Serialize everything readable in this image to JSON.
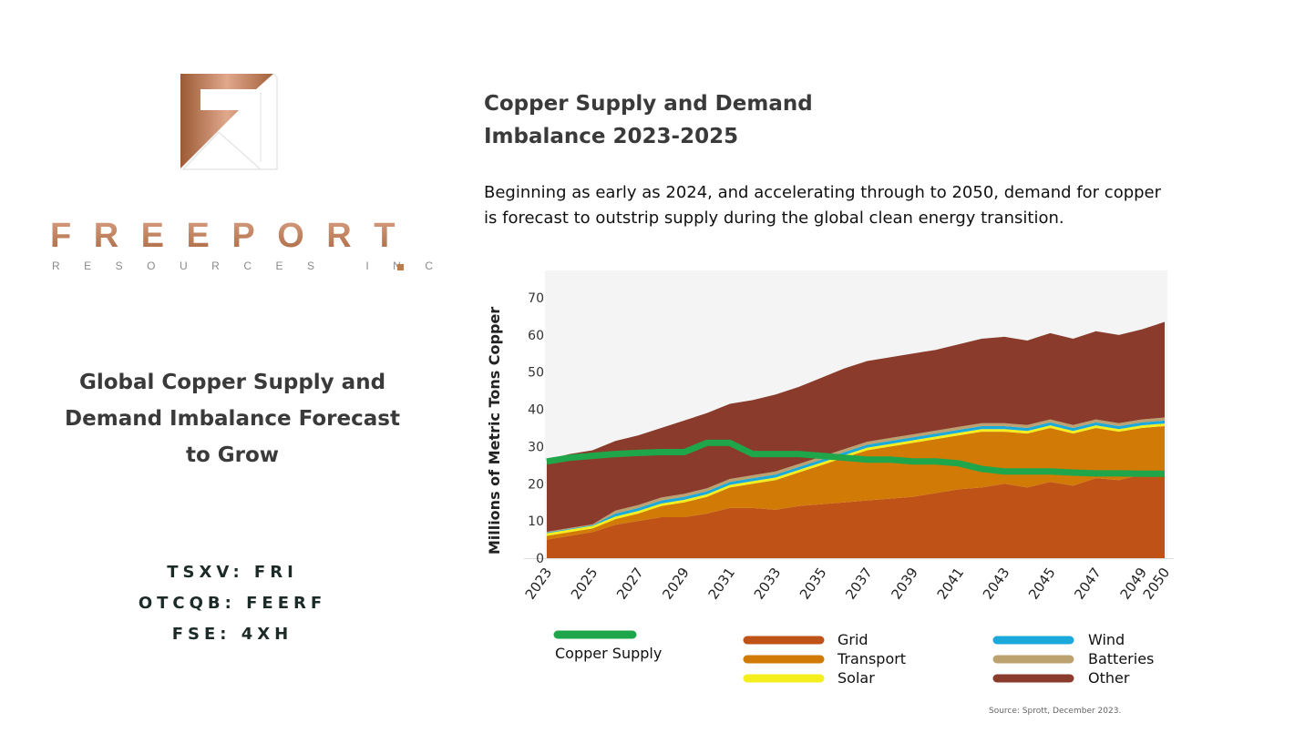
{
  "brand": {
    "name": "FREEPORT",
    "subtitle": "RESOURCES INC",
    "colors": {
      "copper": "#b8784f"
    }
  },
  "left_heading": "Global Copper Supply and Demand Imbalance Forecast to Grow",
  "tickers": [
    "TSXV: FRI",
    "OTCQB: FEERF",
    "FSE: 4XH"
  ],
  "title_line1": "Copper Supply and Demand",
  "title_line2": "Imbalance 2023-2025",
  "description": "Beginning as early as 2024, and accelerating through to 2050, demand for copper is forecast to outstrip supply during the global clean energy transition.",
  "source": "Source:  Sprott, December 2023.",
  "chart_data": {
    "type": "area",
    "stacked": true,
    "ylabel": "Millions of Metric Tons Copper",
    "ylim": [
      0,
      70
    ],
    "yticks": [
      0,
      10,
      20,
      30,
      40,
      50,
      60,
      70
    ],
    "x": [
      2023,
      2024,
      2025,
      2026,
      2027,
      2028,
      2029,
      2030,
      2031,
      2032,
      2033,
      2034,
      2035,
      2036,
      2037,
      2038,
      2039,
      2040,
      2041,
      2042,
      2043,
      2044,
      2045,
      2046,
      2047,
      2048,
      2049,
      2050
    ],
    "xticks": [
      "2023",
      "2025",
      "2027",
      "2029",
      "2031",
      "2033",
      "2035",
      "2037",
      "2039",
      "2041",
      "2043",
      "2045",
      "2047",
      "2049",
      "2050"
    ],
    "grid": false,
    "legend_position": "bottom",
    "series": [
      {
        "name": "Grid",
        "color": "#bf5217",
        "values": [
          5,
          6,
          7,
          9,
          10,
          11,
          11,
          12,
          13.5,
          13.5,
          13,
          14,
          14.5,
          15,
          15.5,
          16,
          16.5,
          17.5,
          18.5,
          19,
          20,
          19,
          20.5,
          19.5,
          21.5,
          21,
          22.5,
          22.5
        ]
      },
      {
        "name": "Transport",
        "color": "#d27a06",
        "values": [
          1,
          1,
          1,
          1.5,
          2,
          3,
          4,
          4.5,
          5.5,
          6.5,
          8,
          9,
          10.5,
          12,
          13.5,
          14,
          14.5,
          14.5,
          14.5,
          15,
          14,
          14.5,
          14.5,
          14,
          13.5,
          13,
          12.5,
          13
        ]
      },
      {
        "name": "Solar",
        "color": "#f4ef1c",
        "values": [
          0.7,
          0.7,
          0.7,
          0.7,
          0.7,
          0.7,
          0.7,
          0.7,
          0.7,
          0.7,
          0.7,
          0.7,
          0.7,
          0.7,
          0.7,
          0.7,
          0.7,
          0.7,
          0.7,
          0.7,
          0.7,
          0.7,
          0.7,
          0.7,
          0.7,
          0.7,
          0.7,
          0.7
        ]
      },
      {
        "name": "Wind",
        "color": "#1ba8da",
        "values": [
          0.2,
          0.2,
          0.2,
          0.8,
          0.8,
          0.8,
          0.8,
          0.8,
          0.8,
          0.8,
          0.8,
          0.8,
          0.8,
          0.8,
          0.8,
          0.8,
          0.8,
          0.8,
          0.8,
          0.8,
          0.8,
          0.8,
          0.8,
          0.8,
          0.8,
          0.8,
          0.8,
          0.8
        ]
      },
      {
        "name": "Batteries",
        "color": "#bba26f",
        "values": [
          0.2,
          0.2,
          0.2,
          0.8,
          0.8,
          0.8,
          0.8,
          0.8,
          0.8,
          0.8,
          0.8,
          0.8,
          0.8,
          0.8,
          0.8,
          0.8,
          0.8,
          0.8,
          0.8,
          0.8,
          0.8,
          0.8,
          0.8,
          0.8,
          0.8,
          0.8,
          0.8,
          0.8
        ]
      },
      {
        "name": "Other",
        "color": "#8a3b2c",
        "values": [
          19.4,
          19.9,
          19.9,
          18.7,
          18.7,
          18.7,
          19.7,
          20.2,
          20.2,
          20.2,
          20.7,
          20.7,
          21.2,
          21.7,
          21.7,
          21.7,
          21.7,
          21.7,
          22.2,
          22.7,
          23.2,
          22.7,
          23.2,
          23.2,
          23.7,
          23.7,
          24.2,
          25.7
        ]
      }
    ],
    "line_series": {
      "name": "Copper Supply",
      "color": "#1fa64a",
      "values": [
        26,
        27,
        27.5,
        28,
        28.3,
        28.5,
        28.5,
        31,
        31,
        28,
        28,
        28,
        27.5,
        27,
        26.5,
        26.5,
        26,
        26,
        25.5,
        24,
        23.3,
        23.3,
        23.3,
        23,
        22.8,
        22.8,
        22.7,
        22.7
      ]
    },
    "plot_background": "#f4f4f4"
  }
}
